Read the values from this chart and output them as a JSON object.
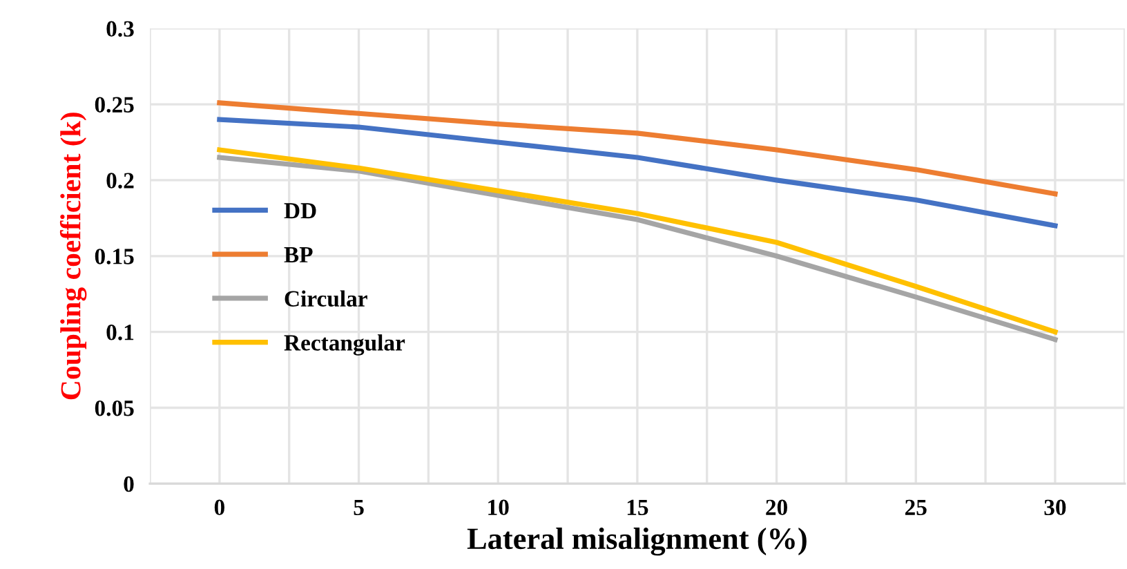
{
  "chart_data": {
    "type": "line",
    "xlabel": "Lateral misalignment (%)",
    "ylabel": "Coupling coefficient (k)",
    "x": [
      0,
      5,
      10,
      15,
      20,
      25,
      30
    ],
    "series": [
      {
        "name": "DD",
        "color": "#4472c4",
        "values": [
          0.24,
          0.235,
          0.225,
          0.215,
          0.2,
          0.187,
          0.17
        ]
      },
      {
        "name": "BP",
        "color": "#ed7d31",
        "values": [
          0.251,
          0.244,
          0.237,
          0.231,
          0.22,
          0.207,
          0.191
        ]
      },
      {
        "name": "Circular",
        "color": "#a5a5a5",
        "values": [
          0.215,
          0.206,
          0.19,
          0.174,
          0.15,
          0.123,
          0.095
        ]
      },
      {
        "name": "Rectangular",
        "color": "#ffc000",
        "values": [
          0.22,
          0.208,
          0.193,
          0.178,
          0.159,
          0.13,
          0.1
        ]
      }
    ],
    "xlim": [
      -2.5,
      32.5
    ],
    "xticks": [
      {
        "value": -2.5,
        "label": null
      },
      0,
      {
        "value": 2.5,
        "label": null
      },
      5,
      {
        "value": 7.5,
        "label": null
      },
      10,
      {
        "value": 12.5,
        "label": null
      },
      15,
      {
        "value": 17.5,
        "label": null
      },
      20,
      {
        "value": 22.5,
        "label": null
      },
      25,
      {
        "value": 27.5,
        "label": null
      },
      30,
      {
        "value": 32.5,
        "label": null
      }
    ],
    "ylim": [
      0,
      0.3
    ],
    "yticks": [
      0,
      0.05,
      0.1,
      0.15,
      0.2,
      0.25,
      0.3
    ],
    "grid": true,
    "legend": "left",
    "marker": "none",
    "line_style": "solid"
  }
}
